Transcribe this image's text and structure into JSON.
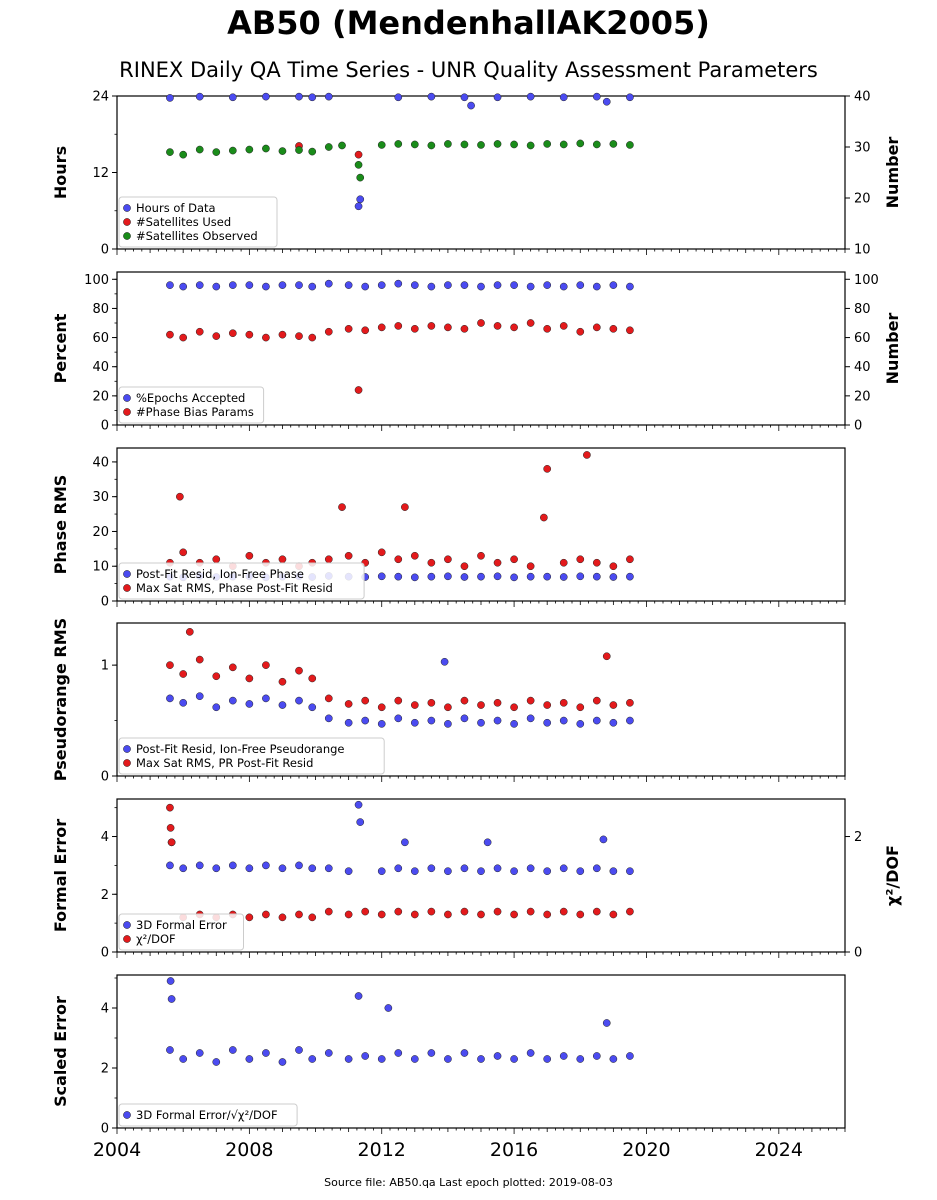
{
  "title": "AB50 (MendenhallAK2005)",
  "subtitle": "RINEX Daily QA Time Series - UNR Quality Assessment Parameters",
  "footer": "Source file: AB50.qa Last epoch plotted: 2019-08-03",
  "chart_data": [
    {
      "type": "scatter",
      "ylabel": "Hours",
      "y2label": "Number",
      "ylim": [
        0,
        24
      ],
      "y2lim": [
        10,
        40
      ],
      "yticks": [
        0,
        12,
        24
      ],
      "y2ticks": [
        10,
        20,
        30,
        40
      ],
      "xlim": [
        2004,
        2026
      ],
      "legend": "bottom-left",
      "series": [
        {
          "name": "Hours of Data",
          "color": "#4b4bf0",
          "axis": "left",
          "x": [
            2005.6,
            2006.5,
            2007.5,
            2008.5,
            2009.5,
            2009.9,
            2010.4,
            2011.3,
            2011.35,
            2012.5,
            2013.5,
            2014.5,
            2014.7,
            2015.5,
            2016.5,
            2017.5,
            2018.5,
            2018.8,
            2019.5
          ],
          "y": [
            23.7,
            23.9,
            23.8,
            23.9,
            23.9,
            23.8,
            23.9,
            6.7,
            7.8,
            23.8,
            23.9,
            23.8,
            22.5,
            23.8,
            23.9,
            23.8,
            23.9,
            23.1,
            23.8
          ]
        },
        {
          "name": "#Satellites Used",
          "color": "#e31a1c",
          "axis": "right",
          "x": [
            2009.5,
            2011.3
          ],
          "y": [
            30.2,
            28.5
          ]
        },
        {
          "name": "#Satellites Observed",
          "color": "#1a8c1a",
          "axis": "right",
          "x": [
            2005.6,
            2006.0,
            2006.5,
            2007.0,
            2007.5,
            2008.0,
            2008.5,
            2009.0,
            2009.5,
            2009.9,
            2010.4,
            2010.8,
            2011.3,
            2011.35,
            2012.0,
            2012.5,
            2013.0,
            2013.5,
            2014.0,
            2014.5,
            2015.0,
            2015.5,
            2016.0,
            2016.5,
            2017.0,
            2017.5,
            2018.0,
            2018.5,
            2019.0,
            2019.5
          ],
          "y": [
            29.0,
            28.5,
            29.5,
            29.0,
            29.3,
            29.5,
            29.7,
            29.2,
            29.4,
            29.1,
            30.0,
            30.3,
            26.5,
            24.0,
            30.4,
            30.6,
            30.5,
            30.3,
            30.6,
            30.5,
            30.4,
            30.6,
            30.5,
            30.3,
            30.6,
            30.5,
            30.7,
            30.5,
            30.6,
            30.4
          ]
        }
      ]
    },
    {
      "type": "scatter",
      "ylabel": "Percent",
      "y2label": "Number",
      "ylim": [
        0,
        105
      ],
      "y2lim": [
        0,
        105
      ],
      "yticks": [
        0,
        20,
        40,
        60,
        80,
        100
      ],
      "y2ticks": [
        0,
        20,
        40,
        60,
        80,
        100
      ],
      "xlim": [
        2004,
        2026
      ],
      "legend": "bottom-left",
      "series": [
        {
          "name": "%Epochs Accepted",
          "color": "#4b4bf0",
          "axis": "left",
          "x": [
            2005.6,
            2006.0,
            2006.5,
            2007.0,
            2007.5,
            2008.0,
            2008.5,
            2009.0,
            2009.5,
            2009.9,
            2010.4,
            2011.0,
            2011.5,
            2012.0,
            2012.5,
            2013.0,
            2013.5,
            2014.0,
            2014.5,
            2015.0,
            2015.5,
            2016.0,
            2016.5,
            2017.0,
            2017.5,
            2018.0,
            2018.5,
            2019.0,
            2019.5
          ],
          "y": [
            96,
            95,
            96,
            95,
            96,
            96,
            95,
            96,
            96,
            95,
            97,
            96,
            95,
            96,
            97,
            96,
            95,
            96,
            96,
            95,
            96,
            96,
            95,
            96,
            95,
            96,
            95,
            96,
            95
          ]
        },
        {
          "name": "#Phase Bias Params",
          "color": "#e31a1c",
          "axis": "right",
          "x": [
            2005.6,
            2006.0,
            2006.5,
            2007.0,
            2007.5,
            2008.0,
            2008.5,
            2009.0,
            2009.5,
            2009.9,
            2010.4,
            2011.0,
            2011.3,
            2011.5,
            2012.0,
            2012.5,
            2013.0,
            2013.5,
            2014.0,
            2014.5,
            2015.0,
            2015.5,
            2016.0,
            2016.5,
            2017.0,
            2017.5,
            2018.0,
            2018.5,
            2019.0,
            2019.5
          ],
          "y": [
            62,
            60,
            64,
            61,
            63,
            62,
            60,
            62,
            61,
            60,
            64,
            66,
            24,
            65,
            67,
            68,
            66,
            68,
            67,
            66,
            70,
            68,
            67,
            70,
            66,
            68,
            64,
            67,
            66,
            65
          ]
        }
      ]
    },
    {
      "type": "scatter",
      "ylabel": "Phase RMS",
      "ylim": [
        0,
        44
      ],
      "yticks": [
        0,
        10,
        20,
        30,
        40
      ],
      "xlim": [
        2004,
        2026
      ],
      "legend": "bottom-left",
      "series": [
        {
          "name": "Post-Fit Resid, Ion-Free Phase",
          "color": "#4b4bf0",
          "axis": "left",
          "x": [
            2005.6,
            2006.0,
            2006.5,
            2007.0,
            2007.5,
            2008.0,
            2008.5,
            2009.0,
            2009.5,
            2009.9,
            2010.4,
            2011.0,
            2011.5,
            2012.0,
            2012.5,
            2013.0,
            2013.5,
            2014.0,
            2014.5,
            2015.0,
            2015.5,
            2016.0,
            2016.5,
            2017.0,
            2017.5,
            2018.0,
            2018.5,
            2019.0,
            2019.5
          ],
          "y": [
            7.0,
            6.8,
            7.2,
            6.9,
            7.0,
            7.1,
            6.8,
            7.0,
            7.1,
            6.9,
            7.2,
            7.0,
            6.9,
            7.1,
            7.0,
            6.8,
            7.0,
            7.1,
            6.9,
            7.0,
            7.1,
            6.8,
            7.0,
            7.0,
            6.9,
            7.1,
            7.0,
            6.9,
            7.0
          ]
        },
        {
          "name": "Max Sat RMS, Phase Post-Fit Resid",
          "color": "#e31a1c",
          "axis": "left",
          "x": [
            2005.6,
            2005.9,
            2006.0,
            2006.5,
            2007.0,
            2007.5,
            2008.0,
            2008.5,
            2009.0,
            2009.5,
            2009.9,
            2010.4,
            2010.8,
            2011.0,
            2011.5,
            2012.0,
            2012.5,
            2012.7,
            2013.0,
            2013.5,
            2014.0,
            2014.5,
            2015.0,
            2015.5,
            2016.0,
            2016.5,
            2016.9,
            2017.0,
            2017.5,
            2018.0,
            2018.2,
            2018.5,
            2019.0,
            2019.5
          ],
          "y": [
            11,
            30,
            14,
            11,
            12,
            10,
            13,
            11,
            12,
            10,
            11,
            12,
            27,
            13,
            11,
            14,
            12,
            27,
            13,
            11,
            12,
            10,
            13,
            11,
            12,
            10,
            24,
            38,
            11,
            12,
            42,
            11,
            10,
            12
          ]
        }
      ]
    },
    {
      "type": "scatter",
      "ylabel": "Pseudorange RMS",
      "ylim": [
        0,
        1.38
      ],
      "yticks": [
        0,
        1
      ],
      "xlim": [
        2004,
        2026
      ],
      "legend": "bottom-left",
      "series": [
        {
          "name": "Post-Fit Resid, Ion-Free Pseudorange",
          "color": "#4b4bf0",
          "axis": "left",
          "x": [
            2005.6,
            2006.0,
            2006.5,
            2007.0,
            2007.5,
            2008.0,
            2008.5,
            2009.0,
            2009.5,
            2009.9,
            2010.4,
            2011.0,
            2011.5,
            2012.0,
            2012.5,
            2013.0,
            2013.5,
            2013.9,
            2014.0,
            2014.5,
            2015.0,
            2015.5,
            2016.0,
            2016.5,
            2017.0,
            2017.5,
            2018.0,
            2018.5,
            2019.0,
            2019.5
          ],
          "y": [
            0.7,
            0.66,
            0.72,
            0.62,
            0.68,
            0.65,
            0.7,
            0.64,
            0.68,
            0.62,
            0.52,
            0.48,
            0.5,
            0.47,
            0.52,
            0.48,
            0.5,
            1.03,
            0.47,
            0.52,
            0.48,
            0.5,
            0.47,
            0.52,
            0.48,
            0.5,
            0.47,
            0.5,
            0.48,
            0.5
          ]
        },
        {
          "name": "Max Sat RMS, PR Post-Fit Resid",
          "color": "#e31a1c",
          "axis": "left",
          "x": [
            2005.6,
            2006.0,
            2006.2,
            2006.5,
            2007.0,
            2007.5,
            2008.0,
            2008.5,
            2009.0,
            2009.5,
            2009.9,
            2010.4,
            2011.0,
            2011.5,
            2012.0,
            2012.5,
            2013.0,
            2013.5,
            2014.0,
            2014.5,
            2015.0,
            2015.5,
            2016.0,
            2016.5,
            2017.0,
            2017.5,
            2018.0,
            2018.5,
            2018.8,
            2019.0,
            2019.5
          ],
          "y": [
            1.0,
            0.92,
            1.3,
            1.05,
            0.9,
            0.98,
            0.88,
            1.0,
            0.85,
            0.95,
            0.88,
            0.7,
            0.65,
            0.68,
            0.62,
            0.68,
            0.64,
            0.66,
            0.62,
            0.68,
            0.64,
            0.66,
            0.62,
            0.68,
            0.64,
            0.66,
            0.62,
            0.68,
            1.08,
            0.64,
            0.66
          ]
        }
      ]
    },
    {
      "type": "scatter",
      "ylabel": "Formal Error",
      "y2label": "χ²/DOF",
      "ylim": [
        0,
        5.3
      ],
      "y2lim": [
        0,
        2.65
      ],
      "yticks": [
        0,
        2,
        4
      ],
      "y2ticks": [
        0,
        2
      ],
      "xlim": [
        2004,
        2026
      ],
      "legend": "bottom-left",
      "series": [
        {
          "name": "3D Formal Error",
          "color": "#4b4bf0",
          "axis": "left",
          "x": [
            2005.6,
            2005.65,
            2006.0,
            2006.5,
            2007.0,
            2007.5,
            2008.0,
            2008.5,
            2009.0,
            2009.5,
            2009.9,
            2010.4,
            2011.0,
            2011.3,
            2011.35,
            2012.0,
            2012.5,
            2012.7,
            2013.0,
            2013.5,
            2014.0,
            2014.5,
            2015.0,
            2015.2,
            2015.5,
            2016.0,
            2016.5,
            2017.0,
            2017.5,
            2018.0,
            2018.5,
            2018.7,
            2019.0,
            2019.5
          ],
          "y": [
            3.0,
            3.8,
            2.9,
            3.0,
            2.9,
            3.0,
            2.9,
            3.0,
            2.9,
            3.0,
            2.9,
            2.9,
            2.8,
            5.1,
            4.5,
            2.8,
            2.9,
            3.8,
            2.8,
            2.9,
            2.8,
            2.9,
            2.8,
            3.8,
            2.9,
            2.8,
            2.9,
            2.8,
            2.9,
            2.8,
            2.9,
            3.9,
            2.8,
            2.8
          ]
        },
        {
          "name": "χ²/DOF",
          "color": "#e31a1c",
          "axis": "right",
          "x": [
            2005.6,
            2005.62,
            2005.65,
            2006.0,
            2006.5,
            2007.0,
            2007.5,
            2008.0,
            2008.5,
            2009.0,
            2009.5,
            2009.9,
            2010.4,
            2011.0,
            2011.5,
            2012.0,
            2012.5,
            2013.0,
            2013.5,
            2014.0,
            2014.5,
            2015.0,
            2015.5,
            2016.0,
            2016.5,
            2017.0,
            2017.5,
            2018.0,
            2018.5,
            2019.0,
            2019.5
          ],
          "y": [
            2.5,
            2.15,
            1.9,
            0.6,
            0.65,
            0.6,
            0.65,
            0.6,
            0.65,
            0.6,
            0.65,
            0.6,
            0.7,
            0.65,
            0.7,
            0.65,
            0.7,
            0.65,
            0.7,
            0.65,
            0.7,
            0.65,
            0.7,
            0.65,
            0.7,
            0.65,
            0.7,
            0.65,
            0.7,
            0.65,
            0.7
          ]
        }
      ]
    },
    {
      "type": "scatter",
      "ylabel": "Scaled Error",
      "ylim": [
        0,
        5.1
      ],
      "yticks": [
        0,
        2,
        4
      ],
      "xlim": [
        2004,
        2026
      ],
      "xticks": [
        2004,
        2008,
        2012,
        2016,
        2020,
        2024
      ],
      "legend": "bottom-left",
      "series": [
        {
          "name": "3D Formal Error/√χ²/DOF",
          "color": "#4b4bf0",
          "axis": "left",
          "x": [
            2005.6,
            2005.62,
            2005.65,
            2006.0,
            2006.5,
            2007.0,
            2007.5,
            2008.0,
            2008.5,
            2009.0,
            2009.5,
            2009.9,
            2010.4,
            2011.0,
            2011.3,
            2011.5,
            2012.0,
            2012.2,
            2012.5,
            2013.0,
            2013.5,
            2014.0,
            2014.5,
            2015.0,
            2015.5,
            2016.0,
            2016.5,
            2017.0,
            2017.5,
            2018.0,
            2018.5,
            2018.8,
            2019.0,
            2019.5
          ],
          "y": [
            2.6,
            4.9,
            4.3,
            2.3,
            2.5,
            2.2,
            2.6,
            2.3,
            2.5,
            2.2,
            2.6,
            2.3,
            2.5,
            2.3,
            4.4,
            2.4,
            2.3,
            4.0,
            2.5,
            2.3,
            2.5,
            2.3,
            2.5,
            2.3,
            2.4,
            2.3,
            2.5,
            2.3,
            2.4,
            2.3,
            2.4,
            3.5,
            2.3,
            2.4
          ]
        }
      ]
    }
  ]
}
